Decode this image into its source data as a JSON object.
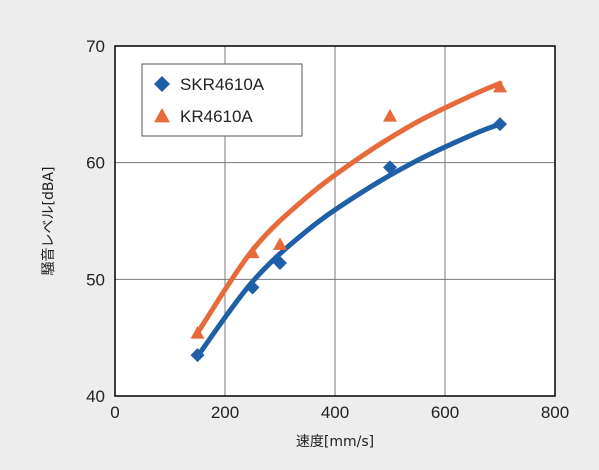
{
  "chart_data": {
    "type": "scatter",
    "xlabel": "速度[mm/s]",
    "ylabel": "騒音レベル[dBA]",
    "xlim": [
      0,
      800
    ],
    "ylim": [
      40,
      70
    ],
    "x_ticks": [
      0,
      200,
      400,
      600,
      800
    ],
    "y_ticks": [
      40,
      50,
      60,
      70
    ],
    "grid": true,
    "legend_position": "top-left",
    "series": [
      {
        "name": "SKR4610A",
        "marker": "diamond",
        "color": "#1f5fa8",
        "x": [
          150,
          250,
          300,
          500,
          700
        ],
        "y": [
          43.5,
          49.3,
          51.4,
          59.6,
          63.3
        ],
        "trend": {
          "x": [
            150,
            250,
            350,
            450,
            550,
            650,
            700
          ],
          "y": [
            43.4,
            49.8,
            54.2,
            57.5,
            60.2,
            62.4,
            63.3
          ]
        }
      },
      {
        "name": "KR4610A",
        "marker": "triangle",
        "color": "#e8693a",
        "x": [
          150,
          250,
          300,
          500,
          700
        ],
        "y": [
          45.4,
          52.3,
          53.0,
          64.0,
          66.5
        ],
        "trend": {
          "x": [
            150,
            250,
            350,
            450,
            550,
            650,
            700
          ],
          "y": [
            45.4,
            52.5,
            57.1,
            60.6,
            63.5,
            65.8,
            66.8
          ]
        }
      }
    ]
  }
}
